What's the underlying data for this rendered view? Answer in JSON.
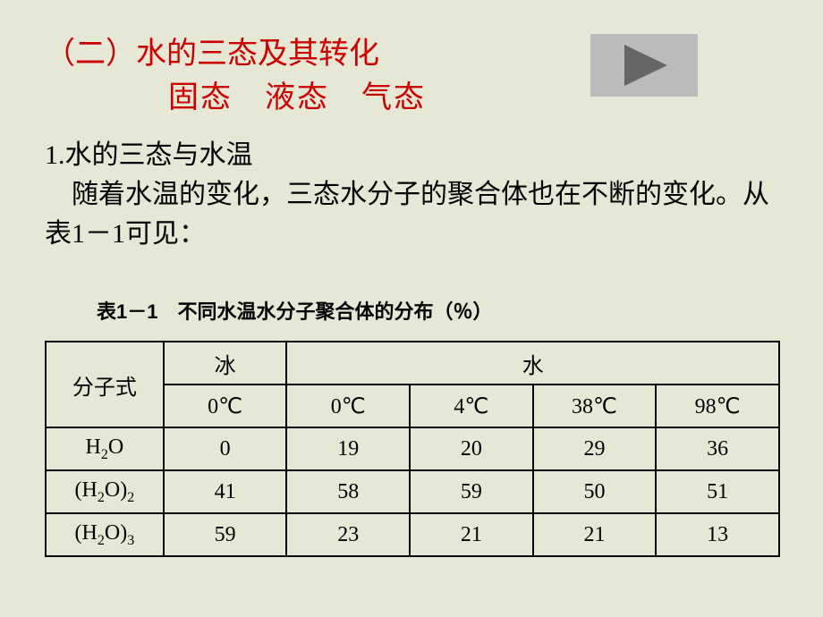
{
  "heading1": "（二）水的三态及其转化",
  "heading2": "固态　液态　气态",
  "subheading": "1.水的三态与水温",
  "paragraph": "随着水温的变化，三态水分子的聚合体也在不断的变化。从表1－1可见：",
  "caption": "表1－1　不同水温水分子聚合体的分布（％）",
  "table": {
    "col_formula_label": "分子式",
    "ice_label": "冰",
    "water_label": "水",
    "temps": [
      "0℃",
      "0℃",
      "4℃",
      "38℃",
      "98℃"
    ],
    "rows": [
      {
        "formula_html": "H<span class=\"sub\">2</span>O",
        "values": [
          "0",
          "19",
          "20",
          "29",
          "36"
        ]
      },
      {
        "formula_html": "(H<span class=\"sub\">2</span>O)<span class=\"sub\">2</span>",
        "values": [
          "41",
          "58",
          "59",
          "50",
          "51"
        ]
      },
      {
        "formula_html": "(H<span class=\"sub\">2</span>O)<span class=\"sub\">3</span>",
        "values": [
          "59",
          "23",
          "21",
          "21",
          "13"
        ]
      }
    ]
  },
  "colors": {
    "background": "#e7e7d6",
    "heading": "#cc0000",
    "play_bg": "#bbbbbb",
    "play_triangle": "#666666",
    "border": "#000000"
  }
}
